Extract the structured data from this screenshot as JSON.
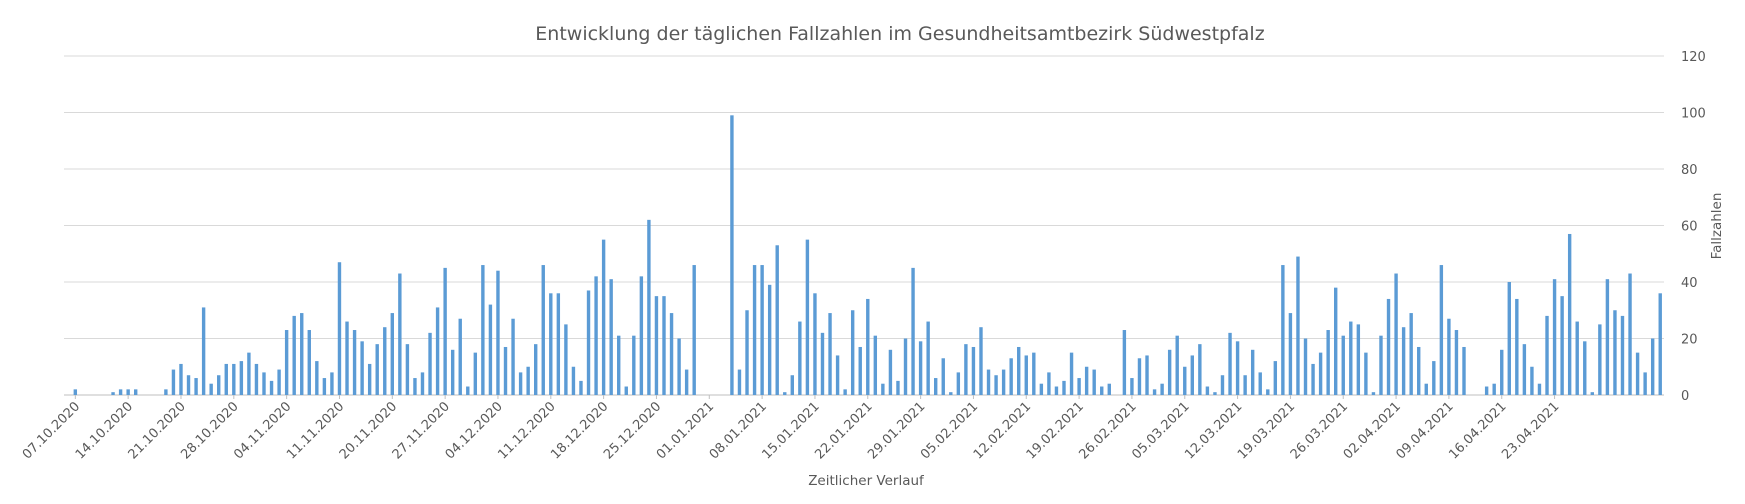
{
  "chart_data": {
    "type": "bar",
    "title": "Entwicklung der täglichen Fallzahlen im Gesundheitsamtbezirk Südwestpfalz",
    "xlabel": "Zeitlicher Verlauf",
    "ylabel": "Fallzahlen",
    "ylim": [
      0,
      120
    ],
    "yticks": [
      0,
      20,
      40,
      60,
      80,
      100,
      120
    ],
    "y_axis_position": "right",
    "grid": true,
    "legend": "none",
    "bar_color": "#5b9bd5",
    "start_date": "06.10.2020",
    "x_tick_labels": [
      "07.10.2020",
      "14.10.2020",
      "21.10.2020",
      "28.10.2020",
      "04.11.2020",
      "11.11.2020",
      "20.11.2020",
      "27.11.2020",
      "04.12.2020",
      "11.12.2020",
      "18.12.2020",
      "25.12.2020",
      "01.01.2021",
      "08.01.2021",
      "15.01.2021",
      "22.01.2021",
      "29.01.2021",
      "05.02.2021",
      "12.02.2021",
      "19.02.2021",
      "26.02.2021",
      "05.03.2021",
      "12.03.2021",
      "19.03.2021",
      "26.03.2021",
      "02.04.2021",
      "09.04.2021",
      "16.04.2021",
      "23.04.2021"
    ],
    "values": [
      0,
      2,
      0,
      0,
      0,
      0,
      1,
      2,
      2,
      2,
      0,
      0,
      0,
      2,
      9,
      11,
      7,
      6,
      31,
      4,
      7,
      11,
      11,
      12,
      15,
      11,
      8,
      5,
      9,
      23,
      28,
      29,
      23,
      12,
      6,
      8,
      47,
      26,
      23,
      19,
      11,
      18,
      24,
      29,
      43,
      18,
      6,
      8,
      22,
      31,
      45,
      16,
      27,
      3,
      15,
      46,
      32,
      44,
      17,
      27,
      8,
      10,
      18,
      46,
      36,
      36,
      25,
      10,
      5,
      37,
      42,
      55,
      41,
      21,
      3,
      21,
      42,
      62,
      35,
      35,
      29,
      20,
      9,
      46,
      0,
      0,
      0,
      0,
      99,
      9,
      30,
      46,
      46,
      39,
      53,
      1,
      7,
      26,
      55,
      36,
      22,
      29,
      14,
      2,
      30,
      17,
      34,
      21,
      4,
      16,
      5,
      20,
      45,
      19,
      26,
      6,
      13,
      1,
      8,
      18,
      17,
      24,
      9,
      7,
      9,
      13,
      17,
      14,
      15,
      4,
      8,
      3,
      5,
      15,
      6,
      10,
      9,
      3,
      4,
      0,
      23,
      6,
      13,
      14,
      2,
      4,
      16,
      21,
      10,
      14,
      18,
      3,
      1,
      7,
      22,
      19,
      7,
      16,
      8,
      2,
      12,
      46,
      29,
      49,
      20,
      11,
      15,
      23,
      38,
      21,
      26,
      25,
      15,
      1,
      21,
      34,
      43,
      24,
      29,
      17,
      4,
      12,
      46,
      27,
      23,
      17,
      0,
      0,
      3,
      4,
      16,
      40,
      34,
      18,
      10,
      4,
      28,
      41,
      35,
      57,
      26,
      19,
      1,
      25,
      41,
      30,
      28,
      43,
      15,
      8,
      20,
      36
    ]
  }
}
